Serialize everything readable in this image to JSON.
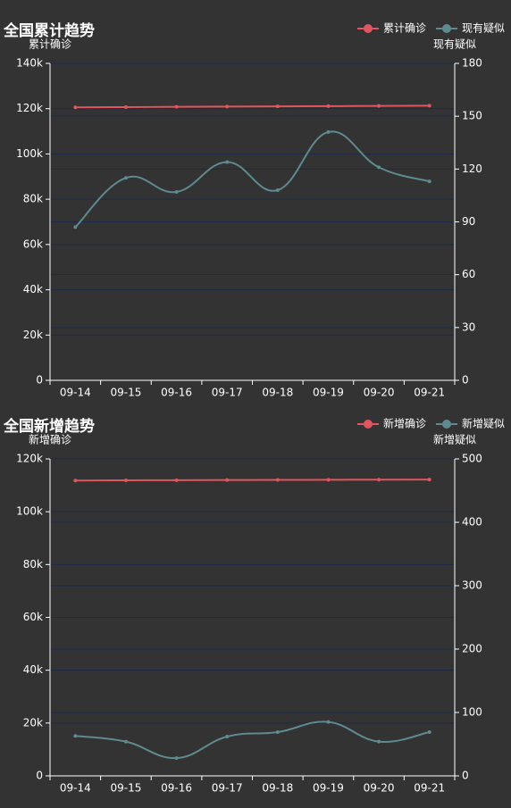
{
  "chart_data": [
    {
      "type": "line",
      "title": "全国累计趋势",
      "y_label": "累计确诊",
      "y2_label": "现有疑似",
      "categories": [
        "09-14",
        "09-15",
        "09-16",
        "09-17",
        "09-18",
        "09-19",
        "09-20",
        "09-21"
      ],
      "ylim": [
        0,
        140000
      ],
      "yticks": [
        0,
        {
          "value": 20000,
          "label": "20k"
        },
        {
          "value": 40000,
          "label": "40k"
        },
        {
          "value": 60000,
          "label": "60k"
        },
        {
          "value": 80000,
          "label": "80k"
        },
        {
          "value": 100000,
          "label": "100k"
        },
        {
          "value": 120000,
          "label": "120k"
        },
        {
          "value": 140000,
          "label": "140k"
        }
      ],
      "y2lim": [
        0,
        180
      ],
      "y2ticks": [
        0,
        30,
        60,
        90,
        120,
        150,
        180
      ],
      "grid": true,
      "series": [
        {
          "name": "累计确诊",
          "color": "#e0555f",
          "values": [
            120600,
            120700,
            120800,
            120900,
            121000,
            121100,
            121200,
            121300
          ]
        },
        {
          "name": "现有疑似",
          "color": "#5f8a8f",
          "axis": "y2",
          "values": [
            87,
            115,
            107,
            124,
            108,
            141,
            121,
            113
          ]
        }
      ]
    },
    {
      "type": "line",
      "title": "全国新增趋势",
      "y_label": "新增确诊",
      "y2_label": "新增疑似",
      "categories": [
        "09-14",
        "09-15",
        "09-16",
        "09-17",
        "09-18",
        "09-19",
        "09-20",
        "09-21"
      ],
      "ylim": [
        0,
        120000
      ],
      "yticks": [
        0,
        {
          "value": 20000,
          "label": "20k"
        },
        {
          "value": 40000,
          "label": "40k"
        },
        {
          "value": 60000,
          "label": "60k"
        },
        {
          "value": 80000,
          "label": "80k"
        },
        {
          "value": 100000,
          "label": "100k"
        },
        {
          "value": 120000,
          "label": "120k"
        }
      ],
      "y2lim": [
        0,
        500
      ],
      "y2ticks": [
        0,
        100,
        200,
        300,
        400,
        500
      ],
      "grid": true,
      "series": [
        {
          "name": "新增确诊",
          "color": "#e0555f",
          "values": [
            111800,
            111900,
            111950,
            112000,
            112050,
            112100,
            112150,
            112200
          ]
        },
        {
          "name": "新增疑似",
          "color": "#5f8a8f",
          "axis": "y2",
          "values": [
            63,
            54,
            28,
            62,
            69,
            85,
            54,
            69
          ]
        }
      ]
    }
  ]
}
